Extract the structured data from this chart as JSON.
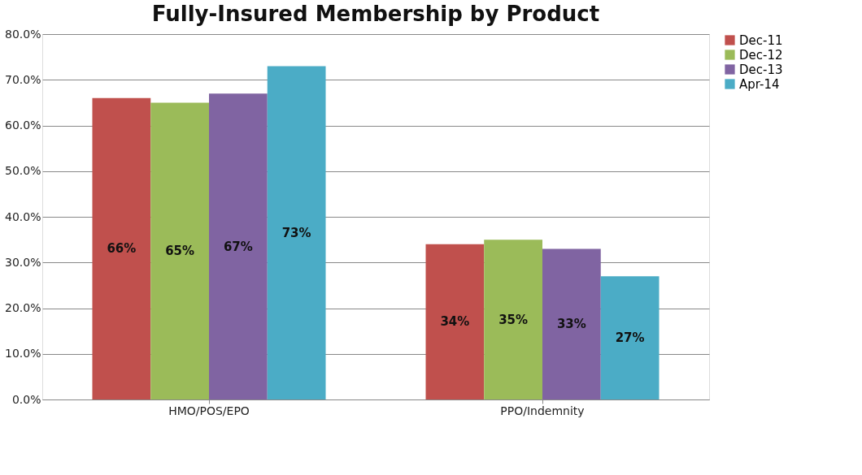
{
  "chart_data": {
    "type": "bar",
    "title": "Fully-Insured Membership by Product",
    "categories": [
      "HMO/POS/EPO",
      "PPO/Indemnity"
    ],
    "series": [
      {
        "name": "Dec-11",
        "color": "#c0504d",
        "values": [
          66,
          34
        ]
      },
      {
        "name": "Dec-12",
        "color": "#9bbb59",
        "values": [
          65,
          35
        ]
      },
      {
        "name": "Dec-13",
        "color": "#8064a2",
        "values": [
          67,
          33
        ]
      },
      {
        "name": "Apr-14",
        "color": "#4bacc6",
        "values": [
          73,
          27
        ]
      }
    ],
    "value_labels": [
      [
        "66%",
        "34%"
      ],
      [
        "65%",
        "35%"
      ],
      [
        "67%",
        "33%"
      ],
      [
        "73%",
        "27%"
      ]
    ],
    "ylim": [
      0,
      80
    ],
    "yticks": [
      {
        "value": 0,
        "label": "0.0%"
      },
      {
        "value": 10,
        "label": "10.0%"
      },
      {
        "value": 20,
        "label": "20.0%"
      },
      {
        "value": 30,
        "label": "30.0%"
      },
      {
        "value": 40,
        "label": "40.0%"
      },
      {
        "value": 50,
        "label": "50.0%"
      },
      {
        "value": 60,
        "label": "60.0%"
      },
      {
        "value": 70,
        "label": "70.0%"
      },
      {
        "value": 80,
        "label": "80.0%"
      }
    ],
    "grid": "y",
    "legend": "right"
  }
}
